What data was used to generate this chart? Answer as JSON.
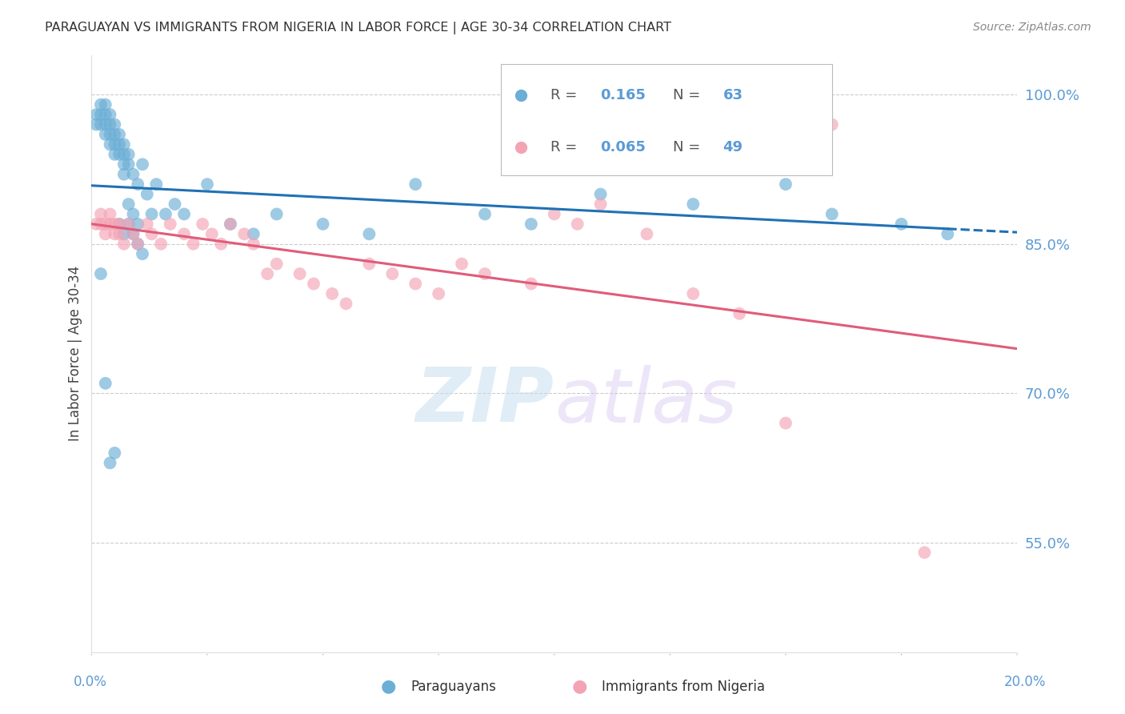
{
  "title": "PARAGUAYAN VS IMMIGRANTS FROM NIGERIA IN LABOR FORCE | AGE 30-34 CORRELATION CHART",
  "source": "Source: ZipAtlas.com",
  "ylabel": "In Labor Force | Age 30-34",
  "right_yticks": [
    1.0,
    0.85,
    0.7,
    0.55
  ],
  "right_yticklabels": [
    "100.0%",
    "85.0%",
    "70.0%",
    "55.0%"
  ],
  "xlim": [
    0.0,
    0.2
  ],
  "ylim": [
    0.44,
    1.04
  ],
  "legend_val1": "0.165",
  "legend_count1": "63",
  "legend_val2": "0.065",
  "legend_count2": "49",
  "blue_color": "#6baed6",
  "pink_color": "#f4a3b5",
  "blue_line_color": "#2171b5",
  "pink_line_color": "#e05c7a",
  "axis_label_color": "#5b9bd5",
  "title_color": "#333333",
  "grid_color": "#cccccc",
  "background_color": "#ffffff",
  "watermark_zip": "ZIP",
  "watermark_atlas": "atlas",
  "paraguayan_x": [
    0.001,
    0.001,
    0.002,
    0.002,
    0.002,
    0.003,
    0.003,
    0.003,
    0.003,
    0.004,
    0.004,
    0.004,
    0.004,
    0.005,
    0.005,
    0.005,
    0.005,
    0.006,
    0.006,
    0.006,
    0.007,
    0.007,
    0.007,
    0.007,
    0.008,
    0.008,
    0.008,
    0.009,
    0.009,
    0.01,
    0.01,
    0.011,
    0.012,
    0.013,
    0.014,
    0.016,
    0.018,
    0.02,
    0.025,
    0.03,
    0.035,
    0.04,
    0.05,
    0.06,
    0.07,
    0.085,
    0.095,
    0.11,
    0.13,
    0.15,
    0.16,
    0.175,
    0.185,
    0.002,
    0.003,
    0.004,
    0.005,
    0.006,
    0.007,
    0.008,
    0.009,
    0.01,
    0.011
  ],
  "paraguayan_y": [
    0.98,
    0.97,
    0.99,
    0.98,
    0.97,
    0.99,
    0.98,
    0.97,
    0.96,
    0.98,
    0.97,
    0.96,
    0.95,
    0.97,
    0.96,
    0.95,
    0.94,
    0.96,
    0.95,
    0.94,
    0.95,
    0.94,
    0.93,
    0.92,
    0.94,
    0.93,
    0.89,
    0.92,
    0.88,
    0.91,
    0.87,
    0.93,
    0.9,
    0.88,
    0.91,
    0.88,
    0.89,
    0.88,
    0.91,
    0.87,
    0.86,
    0.88,
    0.87,
    0.86,
    0.91,
    0.88,
    0.87,
    0.9,
    0.89,
    0.91,
    0.88,
    0.87,
    0.86,
    0.82,
    0.71,
    0.63,
    0.64,
    0.87,
    0.86,
    0.87,
    0.86,
    0.85,
    0.84
  ],
  "nigeria_x": [
    0.001,
    0.002,
    0.002,
    0.003,
    0.003,
    0.004,
    0.004,
    0.005,
    0.005,
    0.006,
    0.006,
    0.007,
    0.008,
    0.009,
    0.01,
    0.012,
    0.013,
    0.015,
    0.017,
    0.02,
    0.022,
    0.024,
    0.026,
    0.028,
    0.03,
    0.033,
    0.035,
    0.038,
    0.04,
    0.045,
    0.048,
    0.052,
    0.055,
    0.06,
    0.065,
    0.07,
    0.075,
    0.08,
    0.085,
    0.095,
    0.1,
    0.105,
    0.11,
    0.12,
    0.13,
    0.14,
    0.15,
    0.16,
    0.18
  ],
  "nigeria_y": [
    0.87,
    0.88,
    0.87,
    0.87,
    0.86,
    0.88,
    0.87,
    0.86,
    0.87,
    0.87,
    0.86,
    0.85,
    0.87,
    0.86,
    0.85,
    0.87,
    0.86,
    0.85,
    0.87,
    0.86,
    0.85,
    0.87,
    0.86,
    0.85,
    0.87,
    0.86,
    0.85,
    0.82,
    0.83,
    0.82,
    0.81,
    0.8,
    0.79,
    0.83,
    0.82,
    0.81,
    0.8,
    0.83,
    0.82,
    0.81,
    0.88,
    0.87,
    0.89,
    0.86,
    0.8,
    0.78,
    0.67,
    0.97,
    0.54
  ]
}
